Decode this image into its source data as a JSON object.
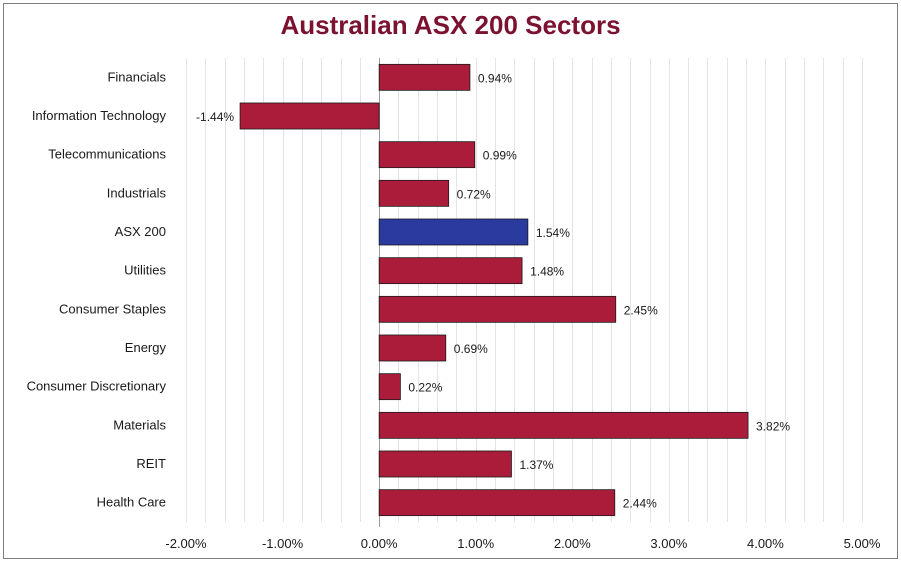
{
  "chart_data": {
    "type": "bar",
    "orientation": "horizontal",
    "title": "Australian ASX 200 Sectors",
    "categories": [
      "Financials",
      "Information Technology",
      "Telecommunications",
      "Industrials",
      "ASX 200",
      "Utilities",
      "Consumer Staples",
      "Energy",
      "Consumer Discretionary",
      "Materials",
      "REIT",
      "Health Care"
    ],
    "values": [
      0.94,
      -1.44,
      0.99,
      0.72,
      1.54,
      1.48,
      2.45,
      0.69,
      0.22,
      3.82,
      1.37,
      2.44
    ],
    "value_labels": [
      "0.94%",
      "-1.44%",
      "0.99%",
      "0.72%",
      "1.54%",
      "1.48%",
      "2.45%",
      "0.69%",
      "0.22%",
      "3.82%",
      "1.37%",
      "2.44%"
    ],
    "xlim": [
      -2,
      5
    ],
    "x_ticks": [
      -2,
      -1,
      0,
      1,
      2,
      3,
      4,
      5
    ],
    "x_tick_labels": [
      "-2.00%",
      "-1.00%",
      "0.00%",
      "1.00%",
      "2.00%",
      "3.00%",
      "4.00%",
      "5.00%"
    ],
    "xlabel": "",
    "ylabel": "",
    "grid": "vertical minor gridlines",
    "legend": "none",
    "colors": {
      "bar": "#ab1c3b",
      "highlight_bar": "#2a3a9e",
      "highlight_category": "ASX 200",
      "bar_outline": "#1a1a1a",
      "title": "#7b1230",
      "gridline": "#e3e3e3",
      "axis": "#9a9a9a"
    }
  }
}
